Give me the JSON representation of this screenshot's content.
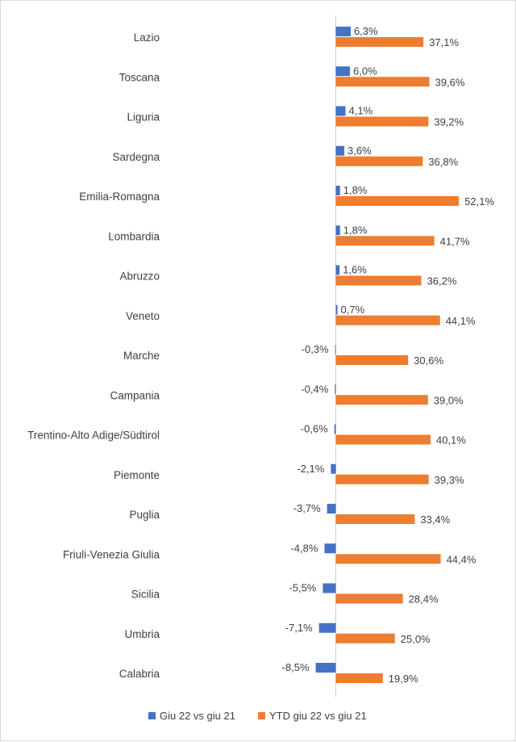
{
  "chart_data": {
    "type": "bar",
    "orientation": "horizontal",
    "categories": [
      "Lazio",
      "Toscana",
      "Liguria",
      "Sardegna",
      "Emilia-Romagna",
      "Lombardia",
      "Abruzzo",
      "Veneto",
      "Marche",
      "Campania",
      "Trentino-Alto Adige/Südtirol",
      "Piemonte",
      "Puglia",
      "Friuli-Venezia Giulia",
      "Sicilia",
      "Umbria",
      "Calabria"
    ],
    "series": [
      {
        "name": "Giu 22 vs giu 21",
        "color": "#4472c4",
        "values": [
          6.3,
          6.0,
          4.1,
          3.6,
          1.8,
          1.8,
          1.6,
          0.7,
          -0.3,
          -0.4,
          -0.6,
          -2.1,
          -3.7,
          -4.8,
          -5.5,
          -7.1,
          -8.5
        ],
        "labels": [
          "6,3%",
          "6,0%",
          "4,1%",
          "3,6%",
          "1,8%",
          "1,8%",
          "1,6%",
          "0,7%",
          "-0,3%",
          "-0,4%",
          "-0,6%",
          "-2,1%",
          "-3,7%",
          "-4,8%",
          "-5,5%",
          "-7,1%",
          "-8,5%"
        ]
      },
      {
        "name": "YTD giu 22 vs giu 21",
        "color": "#ed7d31",
        "values": [
          37.1,
          39.6,
          39.2,
          36.8,
          52.1,
          41.7,
          36.2,
          44.1,
          30.6,
          39.0,
          40.1,
          39.3,
          33.4,
          44.4,
          28.4,
          25.0,
          19.9
        ],
        "labels": [
          "37,1%",
          "39,6%",
          "39,2%",
          "36,8%",
          "52,1%",
          "41,7%",
          "36,2%",
          "44,1%",
          "30,6%",
          "39,0%",
          "40,1%",
          "39,3%",
          "33,4%",
          "44,4%",
          "28,4%",
          "25,0%",
          "19,9%"
        ]
      }
    ],
    "unit": "%",
    "grid": false,
    "legend_position": "bottom"
  }
}
